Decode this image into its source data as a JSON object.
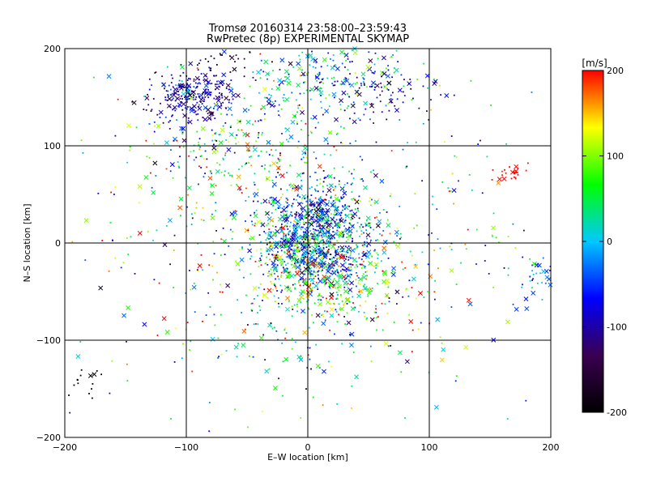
{
  "chart_data": {
    "type": "scatter",
    "title_lines": [
      "Tromsø 20160314 23:58:00–23:59:43",
      "RwPretec (8p) EXPERIMENTAL SKYMAP"
    ],
    "xlabel": "E–W location [km]",
    "ylabel": "N–S location [km]",
    "xlim": [
      -200,
      200
    ],
    "ylim": [
      -200,
      200
    ],
    "xticks": [
      -200,
      -100,
      0,
      100,
      200
    ],
    "yticks": [
      -200,
      -100,
      0,
      100,
      200
    ],
    "grid": true,
    "colorbar": {
      "label": "[m/s]",
      "range": [
        -200,
        200
      ],
      "ticks": [
        200,
        100,
        0,
        -100,
        -200
      ],
      "colormap": [
        "#000000",
        "#3a0050",
        "#0000ff",
        "#00c8ff",
        "#00ff00",
        "#ffff00",
        "#ff0000"
      ]
    },
    "markers": {
      "small_points": "dots",
      "large_points": "x"
    },
    "clusters": [
      {
        "x": 5,
        "y": 10,
        "sx": 22,
        "sy": 28,
        "n": 900,
        "v": -40,
        "vs": 70
      },
      {
        "x": 15,
        "y": -25,
        "sx": 30,
        "sy": 30,
        "n": 450,
        "v": 80,
        "vs": 90
      },
      {
        "x": -95,
        "y": 150,
        "sx": 18,
        "sy": 14,
        "n": 260,
        "v": -90,
        "vs": 40
      },
      {
        "x": 15,
        "y": 170,
        "sx": 40,
        "sy": 22,
        "n": 250,
        "v": -10,
        "vs": 70
      },
      {
        "x": -55,
        "y": 95,
        "sx": 40,
        "sy": 25,
        "n": 200,
        "v": 30,
        "vs": 90
      },
      {
        "x": 60,
        "y": 155,
        "sx": 25,
        "sy": 15,
        "n": 70,
        "v": -110,
        "vs": 40
      },
      {
        "x": -70,
        "y": 190,
        "sx": 14,
        "sy": 8,
        "n": 30,
        "v": -180,
        "vs": 20
      },
      {
        "x": 170,
        "y": 72,
        "sx": 10,
        "sy": 5,
        "n": 25,
        "v": 200,
        "vs": 5
      },
      {
        "x": 190,
        "y": -35,
        "sx": 10,
        "sy": 15,
        "n": 40,
        "v": -30,
        "vs": 40
      },
      {
        "x": -185,
        "y": -140,
        "sx": 8,
        "sy": 10,
        "n": 15,
        "v": -210,
        "vs": 5
      },
      {
        "x": 0,
        "y": -10,
        "sx": 95,
        "sy": 90,
        "n": 650,
        "v": 40,
        "vs": 110
      }
    ]
  }
}
